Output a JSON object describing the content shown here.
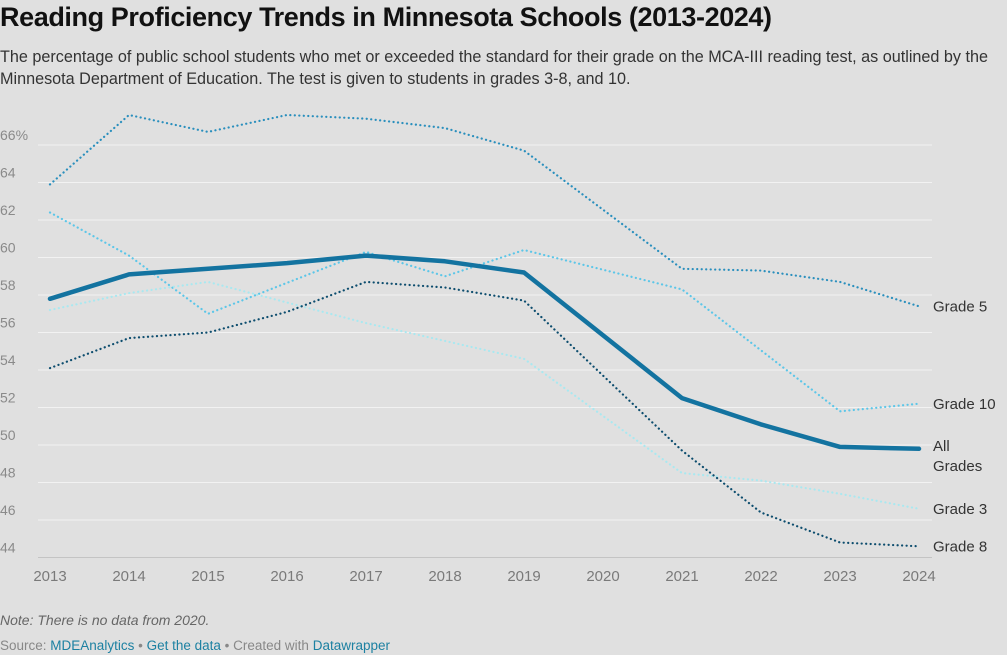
{
  "title": "Reading Proficiency Trends in Minnesota Schools (2013-2024)",
  "subtitle": "The percentage of public school students who met or exceeded the standard for their grade on the MCA-III reading test, as outlined by the Minnesota Department of Education. The test is given to students in grades 3-8, and 10.",
  "note": "Note: There is no data from 2020.",
  "footer": {
    "source_label": "Source:",
    "source_link": "MDEAnalytics",
    "sep1": "•",
    "data_link": "Get the data",
    "created": "• Created with",
    "tool_link": "Datawrapper"
  },
  "chart_data": {
    "type": "line",
    "title": "Reading Proficiency Trends in Minnesota Schools (2013-2024)",
    "x": [
      2013,
      2014,
      2015,
      2016,
      2017,
      2018,
      2019,
      2020,
      2021,
      2022,
      2023,
      2024
    ],
    "x_tick_labels": [
      "2013",
      "2014",
      "2015",
      "2016",
      "2017",
      "2018",
      "2019",
      "2020",
      "2021",
      "2022",
      "2023",
      "2024"
    ],
    "y_ticks": [
      44,
      46,
      48,
      50,
      52,
      54,
      56,
      58,
      60,
      62,
      64,
      66
    ],
    "y_tick_labels": [
      "44",
      "46",
      "48",
      "50",
      "52",
      "54",
      "56",
      "58",
      "60",
      "62",
      "64",
      "66%"
    ],
    "ylim": [
      44,
      67
    ],
    "grid": true,
    "series": [
      {
        "name": "Grade 5",
        "label_lines": [
          "Grade 5"
        ],
        "color": "#2a8fbd",
        "style": "dotted",
        "values": [
          63.9,
          67.6,
          66.7,
          67.6,
          67.4,
          66.9,
          65.7,
          null,
          59.4,
          59.3,
          58.7,
          57.4
        ]
      },
      {
        "name": "Grade 10",
        "label_lines": [
          "Grade 10"
        ],
        "color": "#5cc6e8",
        "style": "dotted",
        "values": [
          62.4,
          60.1,
          57.0,
          null,
          60.3,
          59.0,
          60.4,
          null,
          58.3,
          null,
          51.8,
          52.2
        ]
      },
      {
        "name": "Grade 3",
        "label_lines": [
          "Grade 3"
        ],
        "color": "#a9e8f0",
        "style": "dotted",
        "values": [
          57.2,
          58.1,
          58.7,
          null,
          56.5,
          null,
          54.6,
          null,
          48.5,
          48.1,
          47.4,
          46.6
        ]
      },
      {
        "name": "Grade 8",
        "label_lines": [
          "Grade 8"
        ],
        "color": "#0d4d6e",
        "style": "dotted",
        "values": [
          54.1,
          55.7,
          56.0,
          57.1,
          58.7,
          58.4,
          57.7,
          null,
          49.7,
          46.4,
          44.8,
          44.6
        ]
      },
      {
        "name": "All Grades",
        "label_lines": [
          "All",
          "Grades"
        ],
        "color": "#1373a0",
        "style": "solid",
        "values": [
          57.8,
          59.1,
          59.4,
          59.7,
          60.1,
          59.8,
          59.2,
          null,
          52.5,
          51.1,
          49.9,
          49.8
        ]
      }
    ]
  }
}
